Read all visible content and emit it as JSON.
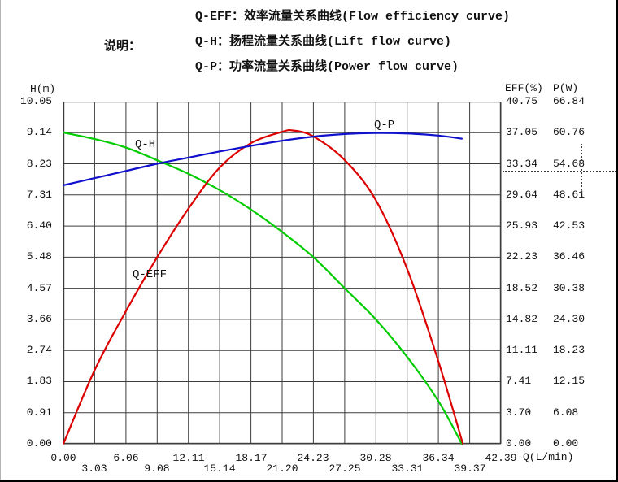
{
  "page": {
    "background": "#ffffff"
  },
  "legend": {
    "intro_label": "说明：",
    "lines": [
      {
        "id": "qeff",
        "text": "Q-EFF：效率流量关系曲线(Flow efficiency curve)"
      },
      {
        "id": "qh",
        "text": "Q-H：扬程流量关系曲线(Lift flow curve)"
      },
      {
        "id": "qp",
        "text": "Q-P：功率流量关系曲线(Power flow curve)"
      }
    ]
  },
  "annotations": {
    "rated_point_marker": "dashed crosshair under the 33.34 / 54.68 tick labels"
  },
  "chart_data": {
    "type": "line",
    "grid": true,
    "colors": {
      "grid": "#3d3d3d",
      "q_h": "#00cc00",
      "q_eff": "#dd0000",
      "q_p": "#1111cd"
    },
    "x_axis": {
      "label": "Q(L/min)",
      "range": [
        0,
        42.39
      ],
      "ticks": [
        "0.00",
        "3.03",
        "6.06",
        "9.08",
        "12.11",
        "15.14",
        "18.17",
        "21.20",
        "24.23",
        "27.25",
        "30.28",
        "33.31",
        "36.34",
        "39.37",
        "42.39"
      ]
    },
    "y_axis_left": {
      "label": "H(m)",
      "range": [
        0,
        10.05
      ],
      "ticks_bottom_to_top": [
        "0.00",
        "0.91",
        "1.83",
        "2.74",
        "3.66",
        "4.57",
        "5.48",
        "6.40",
        "7.31",
        "8.23",
        "9.14",
        "10.05"
      ]
    },
    "y_axis_right_eff": {
      "label": "EFF(%)",
      "range": [
        0,
        40.75
      ],
      "ticks_bottom_to_top": [
        "0.00",
        "3.70",
        "7.41",
        "11.11",
        "14.82",
        "18.52",
        "22.23",
        "25.93",
        "29.64",
        "33.34",
        "37.05",
        "40.75"
      ]
    },
    "y_axis_right_p": {
      "label": "P(W)",
      "range": [
        0,
        66.84
      ],
      "ticks_bottom_to_top": [
        "0.00",
        "6.08",
        "12.15",
        "18.23",
        "24.30",
        "30.38",
        "36.46",
        "42.53",
        "48.61",
        "54.68",
        "60.76",
        "66.84"
      ]
    },
    "series": [
      {
        "name": "Q-H",
        "axis": "H",
        "color": "#00cc00",
        "points": [
          [
            0,
            9.14
          ],
          [
            3.03,
            8.95
          ],
          [
            6.06,
            8.7
          ],
          [
            9.08,
            8.33
          ],
          [
            12.11,
            7.93
          ],
          [
            15.14,
            7.45
          ],
          [
            18.17,
            6.88
          ],
          [
            21.2,
            6.22
          ],
          [
            24.23,
            5.48
          ],
          [
            27.25,
            4.57
          ],
          [
            30.28,
            3.65
          ],
          [
            33.31,
            2.55
          ],
          [
            36.34,
            1.25
          ],
          [
            38.6,
            0.0
          ]
        ]
      },
      {
        "name": "Q-EFF",
        "axis": "EFF",
        "color": "#dd0000",
        "points": [
          [
            0,
            0
          ],
          [
            3.03,
            8.8
          ],
          [
            6.06,
            15.8
          ],
          [
            9.08,
            22.2
          ],
          [
            12.11,
            28.0
          ],
          [
            15.14,
            32.9
          ],
          [
            18.17,
            35.8
          ],
          [
            21.2,
            37.15
          ],
          [
            22.3,
            37.3
          ],
          [
            24.23,
            36.6
          ],
          [
            27.25,
            33.8
          ],
          [
            30.28,
            29.0
          ],
          [
            33.31,
            20.8
          ],
          [
            36.34,
            9.8
          ],
          [
            38.7,
            0
          ]
        ]
      },
      {
        "name": "Q-P",
        "axis": "P",
        "color": "#1111cd",
        "points": [
          [
            0,
            50.5
          ],
          [
            3.03,
            51.9
          ],
          [
            6.06,
            53.3
          ],
          [
            9.08,
            54.7
          ],
          [
            12.11,
            55.9
          ],
          [
            15.14,
            57.1
          ],
          [
            18.17,
            58.2
          ],
          [
            21.2,
            59.2
          ],
          [
            24.23,
            60.0
          ],
          [
            27.25,
            60.5
          ],
          [
            30.28,
            60.7
          ],
          [
            33.31,
            60.6
          ],
          [
            36.34,
            60.2
          ],
          [
            38.6,
            59.6
          ]
        ]
      }
    ]
  }
}
